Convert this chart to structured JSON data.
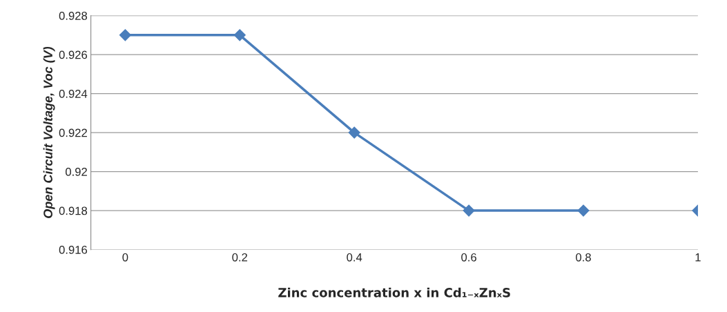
{
  "chart_data": {
    "type": "line",
    "xlabel": "Zinc concentration x in Cd₁₋ₓZnₓS",
    "ylabel": "Open Circuit Voltage, Voc (V)",
    "series": [
      {
        "color": "#4a7ebb",
        "x": [
          0,
          0.2,
          0.4,
          0.6,
          0.8
        ],
        "values": [
          0.927,
          0.927,
          0.922,
          0.918,
          0.918
        ]
      },
      {
        "type": "scatter",
        "color": "#4a7ebb",
        "x": [
          1
        ],
        "values": [
          0.918
        ]
      }
    ],
    "xlim": [
      -0.06,
      1.0
    ],
    "xticks": [
      0,
      0.2,
      0.4,
      0.6,
      0.8,
      1
    ],
    "ylim": [
      0.916,
      0.928
    ],
    "yticks": [
      0.916,
      0.918,
      0.92,
      0.922,
      0.924,
      0.926,
      0.928
    ],
    "grid": "y",
    "marker": "diamond",
    "legend": false
  }
}
